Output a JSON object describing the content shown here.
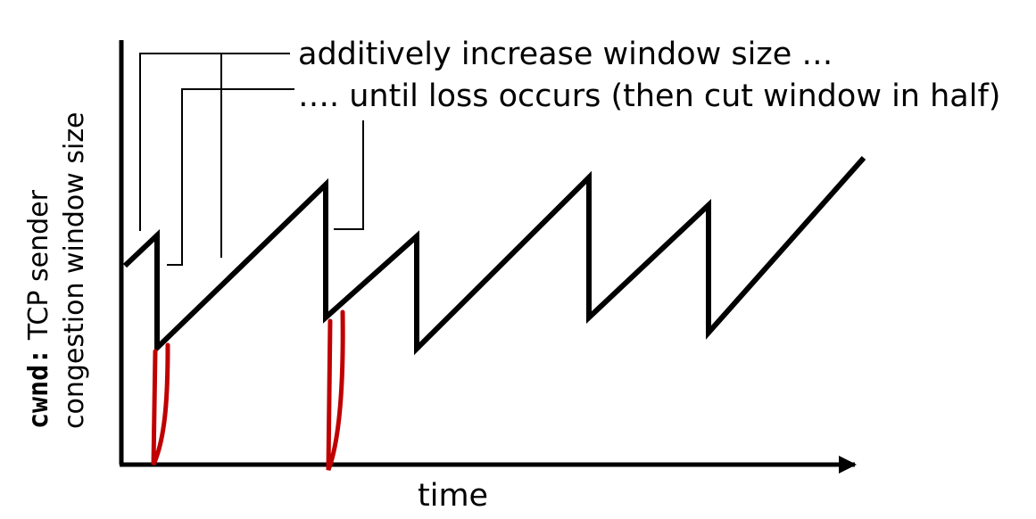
{
  "annotations": {
    "increase": "additively increase window size …",
    "loss": "…. until loss occurs (then cut window in half)"
  },
  "axes": {
    "xlabel": "time",
    "ylabel_code": "cwnd:",
    "ylabel_line1_rest": " TCP sender",
    "ylabel_line2": "congestion window size"
  },
  "colors": {
    "sawtooth": "#000000",
    "slow_start": "#c00000"
  }
}
